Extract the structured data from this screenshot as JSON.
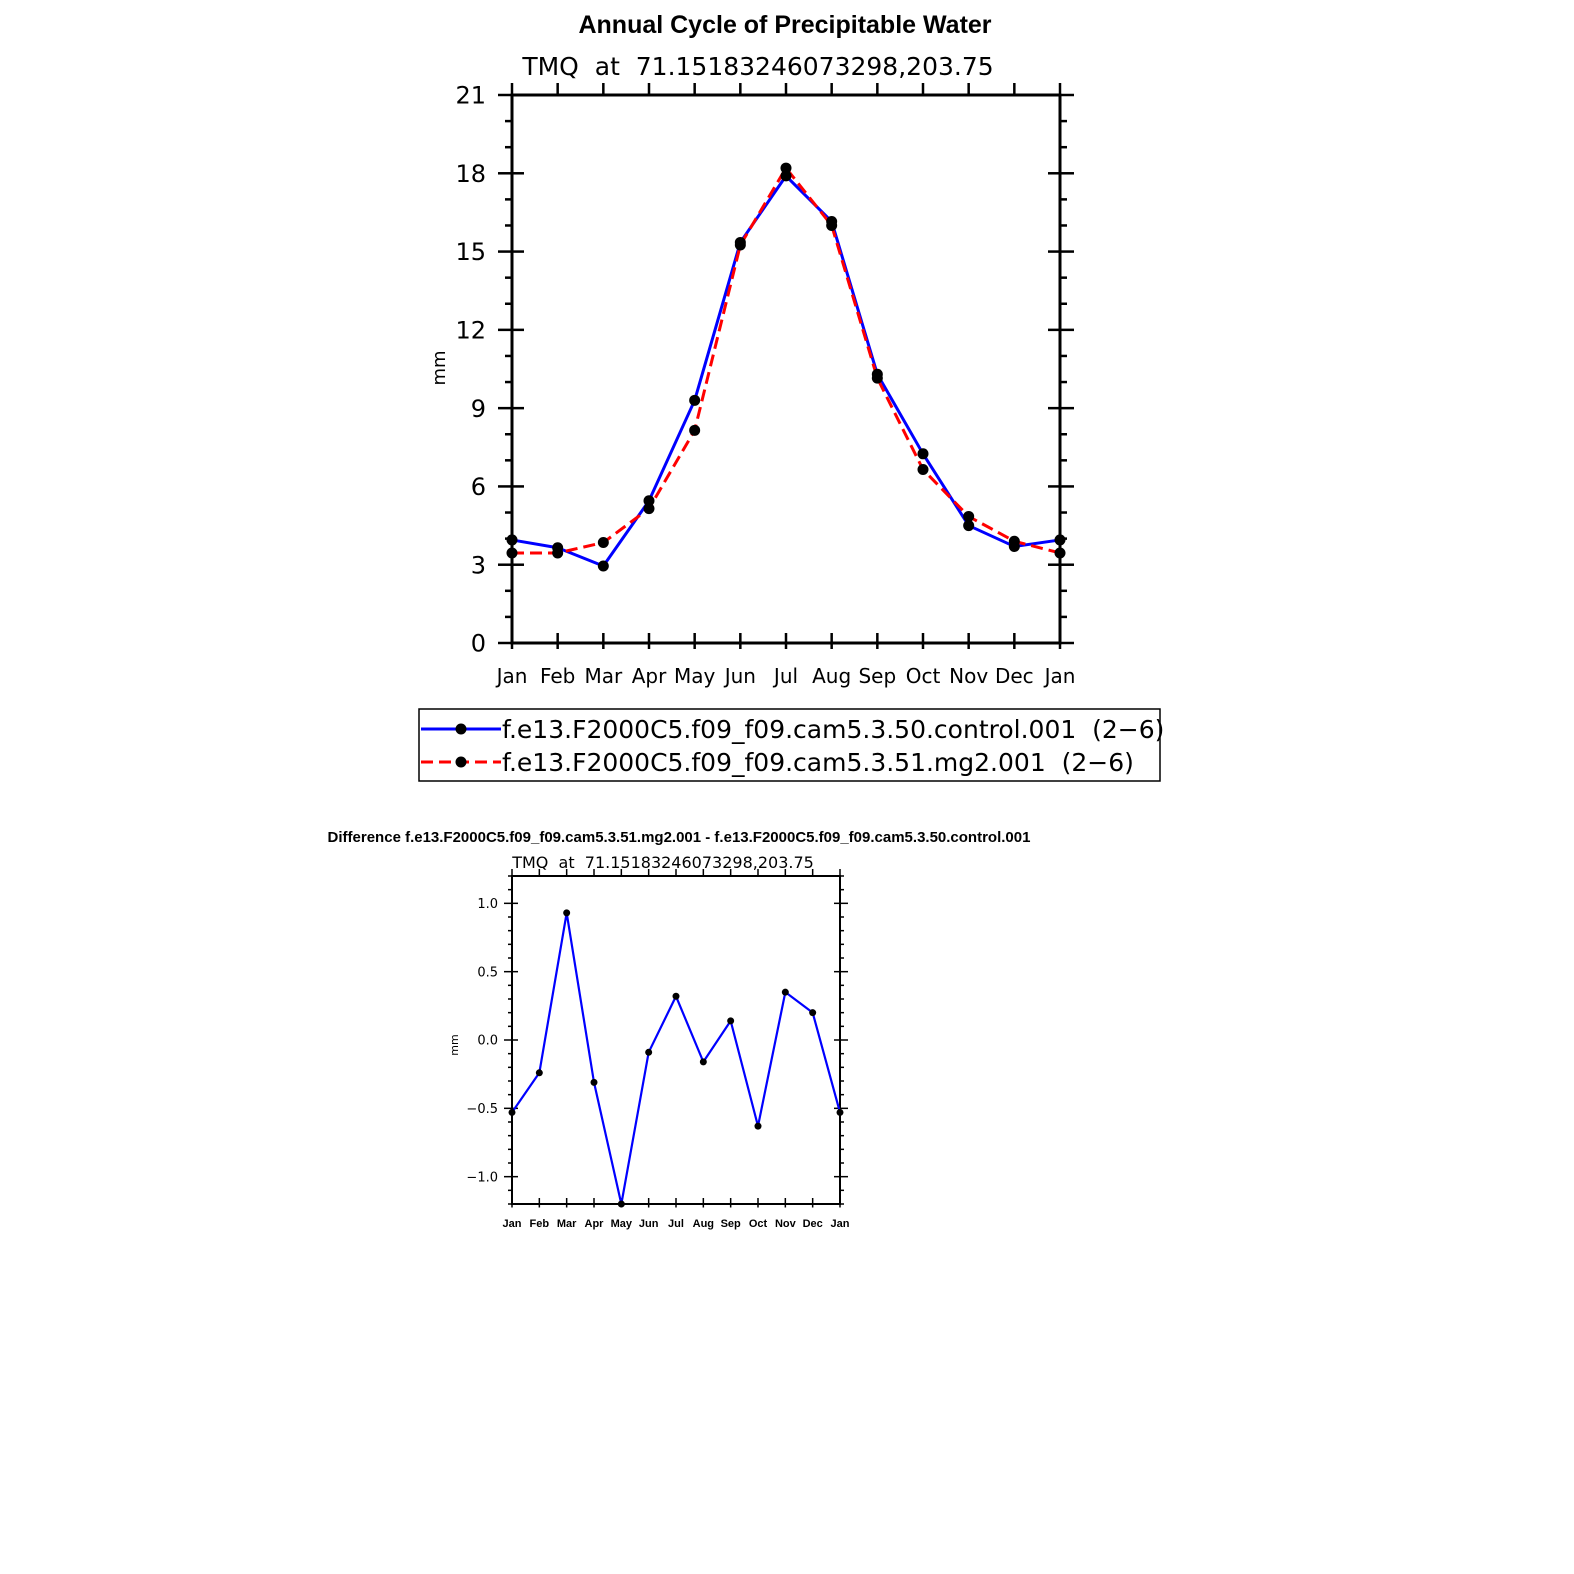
{
  "title": "Annual Cycle of Precipitable Water",
  "diff_title": "Difference f.e13.F2000C5.f09_f09.cam5.3.51.mg2.001 - f.e13.F2000C5.f09_f09.cam5.3.50.control.001",
  "chart_data": [
    {
      "type": "line",
      "subtitle": "TMQ  at  71.15183246073298,203.75",
      "ylabel": "mm",
      "xlabel": "",
      "categories": [
        "Jan",
        "Feb",
        "Mar",
        "Apr",
        "May",
        "Jun",
        "Jul",
        "Aug",
        "Sep",
        "Oct",
        "Nov",
        "Dec",
        "Jan"
      ],
      "ylim": [
        0,
        21
      ],
      "yticks": [
        0,
        3,
        6,
        9,
        12,
        15,
        18,
        21
      ],
      "grid": false,
      "legend": "below",
      "series": [
        {
          "name": "f.e13.F2000C5.f09_f09.cam5.3.50.control.001  (2−6)",
          "color": "#0000ff",
          "dash": "solid",
          "values": [
            3.95,
            3.65,
            2.95,
            5.45,
            9.3,
            15.35,
            17.9,
            16.15,
            10.3,
            7.25,
            4.5,
            3.7,
            3.95
          ]
        },
        {
          "name": "f.e13.F2000C5.f09_f09.cam5.3.51.mg2.001  (2−6)",
          "color": "#ff0000",
          "dash": "dashed",
          "values": [
            3.45,
            3.45,
            3.85,
            5.15,
            8.15,
            15.25,
            18.2,
            16.0,
            10.15,
            6.65,
            4.85,
            3.9,
            3.45
          ]
        }
      ]
    },
    {
      "type": "line",
      "subtitle": "TMQ  at  71.15183246073298,203.75",
      "ylabel": "mm",
      "xlabel": "",
      "categories": [
        "Jan",
        "Feb",
        "Mar",
        "Apr",
        "May",
        "Jun",
        "Jul",
        "Aug",
        "Sep",
        "Oct",
        "Nov",
        "Dec",
        "Jan"
      ],
      "ylim": [
        -1.2,
        1.2
      ],
      "yticks": [
        -1.0,
        -0.5,
        0.0,
        0.5,
        1.0
      ],
      "ytick_labels": [
        "−1.0",
        "−0.5",
        "0.0",
        "0.5",
        "1.0"
      ],
      "grid": false,
      "series": [
        {
          "color": "#0000ff",
          "values": [
            -0.53,
            -0.24,
            0.93,
            -0.31,
            -1.2,
            -0.09,
            0.32,
            -0.16,
            0.14,
            -0.63,
            0.35,
            0.2,
            -0.53
          ]
        }
      ]
    }
  ]
}
